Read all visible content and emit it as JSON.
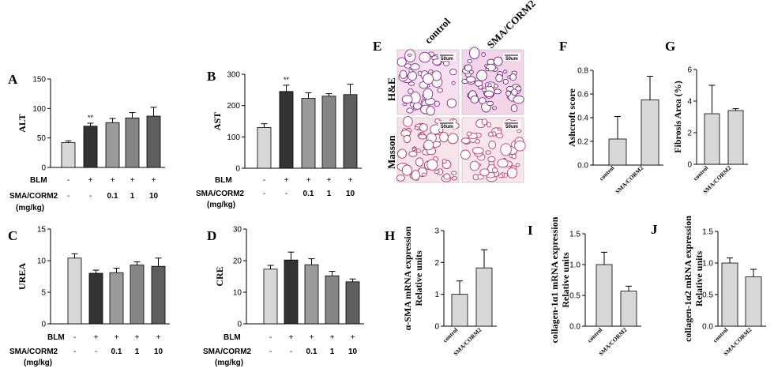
{
  "figure": {
    "colors": [
      "#d8d8d8",
      "#333333",
      "#9b9b9b",
      "#858585",
      "#5e5e5e"
    ],
    "two_colors": [
      "#d8d8d8",
      "#d8d8d8"
    ],
    "row_labels": {
      "blm": "BLM",
      "sma_line1": "SMA/CORM2",
      "sma_line2": "(mg/kg)"
    },
    "blm_values": [
      "-",
      "+",
      "+",
      "+",
      "+"
    ],
    "sma_values": [
      "-",
      "-",
      "0.1",
      "1",
      "10"
    ],
    "two_categories": [
      "control",
      "SMA/CORM2"
    ]
  },
  "histology": {
    "panel": "E",
    "col_labels": [
      "control",
      "SMA/CORM2"
    ],
    "row_labels": [
      "H&E",
      "Masson"
    ],
    "scale_label": "50um"
  },
  "chart_data": [
    {
      "panel": "A",
      "type": "bar",
      "ylabel": "ALT",
      "ylim": [
        0,
        150
      ],
      "yticks": [
        0,
        50,
        100,
        150
      ],
      "values": [
        42,
        70,
        76,
        84,
        87
      ],
      "errors": [
        3,
        5,
        7,
        9,
        15
      ],
      "stars": [
        "",
        "**",
        "",
        "",
        ""
      ]
    },
    {
      "panel": "B",
      "type": "bar",
      "ylabel": "AST",
      "ylim": [
        0,
        300
      ],
      "yticks": [
        0,
        100,
        200,
        300
      ],
      "values": [
        130,
        245,
        223,
        230,
        235
      ],
      "errors": [
        12,
        20,
        18,
        8,
        33
      ],
      "stars": [
        "",
        "**",
        "",
        "",
        ""
      ]
    },
    {
      "panel": "C",
      "type": "bar",
      "ylabel": "UREA",
      "ylim": [
        0,
        15
      ],
      "yticks": [
        0,
        5,
        10,
        15
      ],
      "values": [
        10.4,
        8.0,
        8.1,
        9.3,
        9.1
      ],
      "errors": [
        0.7,
        0.5,
        0.7,
        0.5,
        1.3
      ],
      "stars": [
        "",
        "",
        "",
        "",
        ""
      ]
    },
    {
      "panel": "D",
      "type": "bar",
      "ylabel": "CRE",
      "ylim": [
        0,
        30
      ],
      "yticks": [
        0,
        10,
        20,
        30
      ],
      "values": [
        17.3,
        20.2,
        18.7,
        15.2,
        13.3
      ],
      "errors": [
        1.2,
        2.5,
        1.9,
        1.4,
        0.9
      ],
      "stars": [
        "",
        "",
        "",
        "",
        ""
      ]
    },
    {
      "panel": "F",
      "type": "bar",
      "ylabel": "Ashcroft score",
      "ylim": [
        0,
        0.8
      ],
      "yticks": [
        0.0,
        0.2,
        0.4,
        0.6,
        0.8
      ],
      "values": [
        0.22,
        0.55
      ],
      "errors": [
        0.19,
        0.2
      ]
    },
    {
      "panel": "G",
      "type": "bar",
      "ylabel": "Fibrosis Area (%)",
      "ylim": [
        0,
        6
      ],
      "yticks": [
        0,
        2,
        4,
        6
      ],
      "values": [
        3.2,
        3.4
      ],
      "errors": [
        1.8,
        0.12
      ]
    },
    {
      "panel": "H",
      "type": "bar",
      "ylabel": [
        "α-SMA mRNA expression",
        "Relative units"
      ],
      "ylim": [
        0,
        3
      ],
      "yticks": [
        0,
        1,
        2,
        3
      ],
      "values": [
        1.0,
        1.83
      ],
      "errors": [
        0.42,
        0.57
      ]
    },
    {
      "panel": "I",
      "type": "bar",
      "ylabel": [
        "collagen-1α1 mRNA expression",
        "Relative units"
      ],
      "ylim": [
        0,
        1.5
      ],
      "yticks": [
        0.0,
        0.5,
        1.0,
        1.5
      ],
      "values": [
        1.0,
        0.57
      ],
      "errors": [
        0.2,
        0.08
      ]
    },
    {
      "panel": "J",
      "type": "bar",
      "ylabel": [
        "collagen-1α2 mRNA expression",
        "Relative units"
      ],
      "ylim": [
        0,
        1.5
      ],
      "yticks": [
        0.0,
        0.5,
        1.0,
        1.5
      ],
      "values": [
        1.0,
        0.78
      ],
      "errors": [
        0.08,
        0.12
      ]
    }
  ]
}
